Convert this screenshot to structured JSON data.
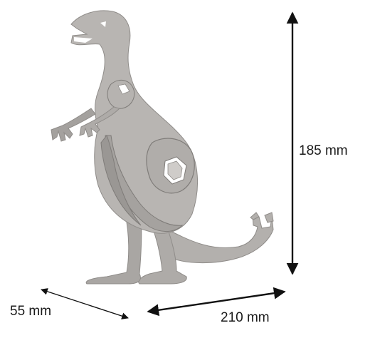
{
  "dimensions": {
    "height": "185 mm",
    "width": "210 mm",
    "depth": "55 mm"
  },
  "colors": {
    "cardboard": "#b3b0ad",
    "cardboard_shadow": "#8f8c89",
    "cardboard_edge": "#6f6c69",
    "arrow": "#111111"
  },
  "subject": {
    "icon": "dinosaur-cardboard-model"
  }
}
